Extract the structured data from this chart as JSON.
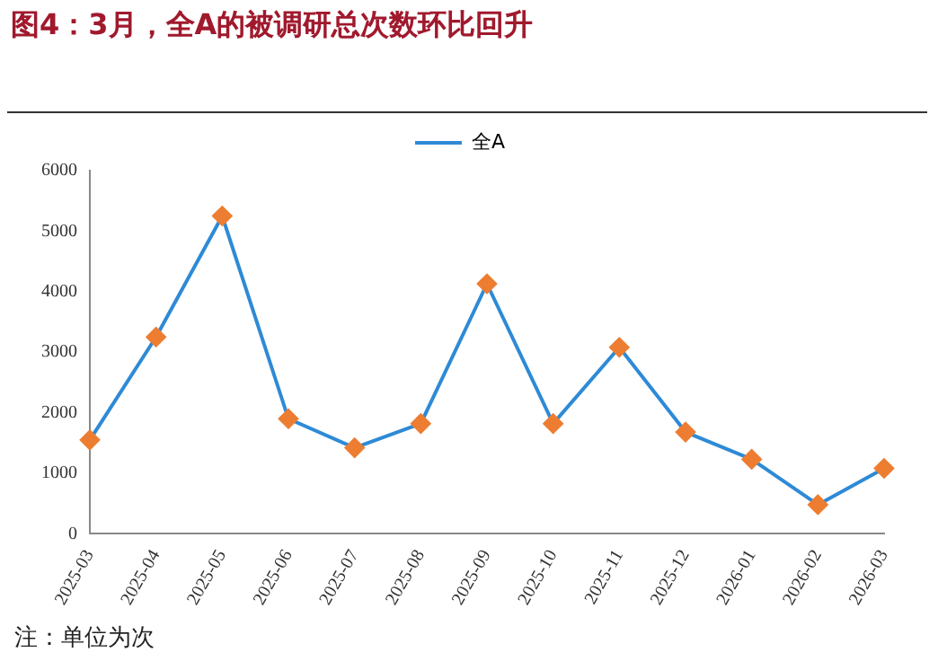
{
  "chart_data": {
    "type": "line",
    "title": "图4：3月，全A的被调研总次数环比回升",
    "categories": [
      "2025-03",
      "2025-04",
      "2025-05",
      "2025-06",
      "2025-07",
      "2025-08",
      "2025-09",
      "2025-10",
      "2025-11",
      "2025-12",
      "2026-01",
      "2026-02",
      "2026-03"
    ],
    "series": [
      {
        "name": "全A",
        "color": "#2e8ad6",
        "colors": [
          "#ed7d31",
          "#ed7d31",
          "#ed7d31",
          "#ed7d31",
          "#ed7d31",
          "#ed7d31",
          "#ed7d31",
          "#ed7d31",
          "#ed7d31",
          "#ed7d31",
          "#ed7d31",
          "#ed7d31",
          "#ed7d31"
        ],
        "values": [
          1550,
          3250,
          5250,
          1900,
          1420,
          1820,
          4130,
          1820,
          3080,
          1680,
          1230,
          480,
          1080
        ]
      }
    ],
    "ylim": [
      0,
      6000
    ],
    "yticks": [
      0,
      1000,
      2000,
      3000,
      4000,
      5000,
      6000
    ],
    "grid": false,
    "legend": "top",
    "marker": "diamond",
    "line_style": "solid",
    "annotations": [
      "注：单位为次"
    ]
  }
}
